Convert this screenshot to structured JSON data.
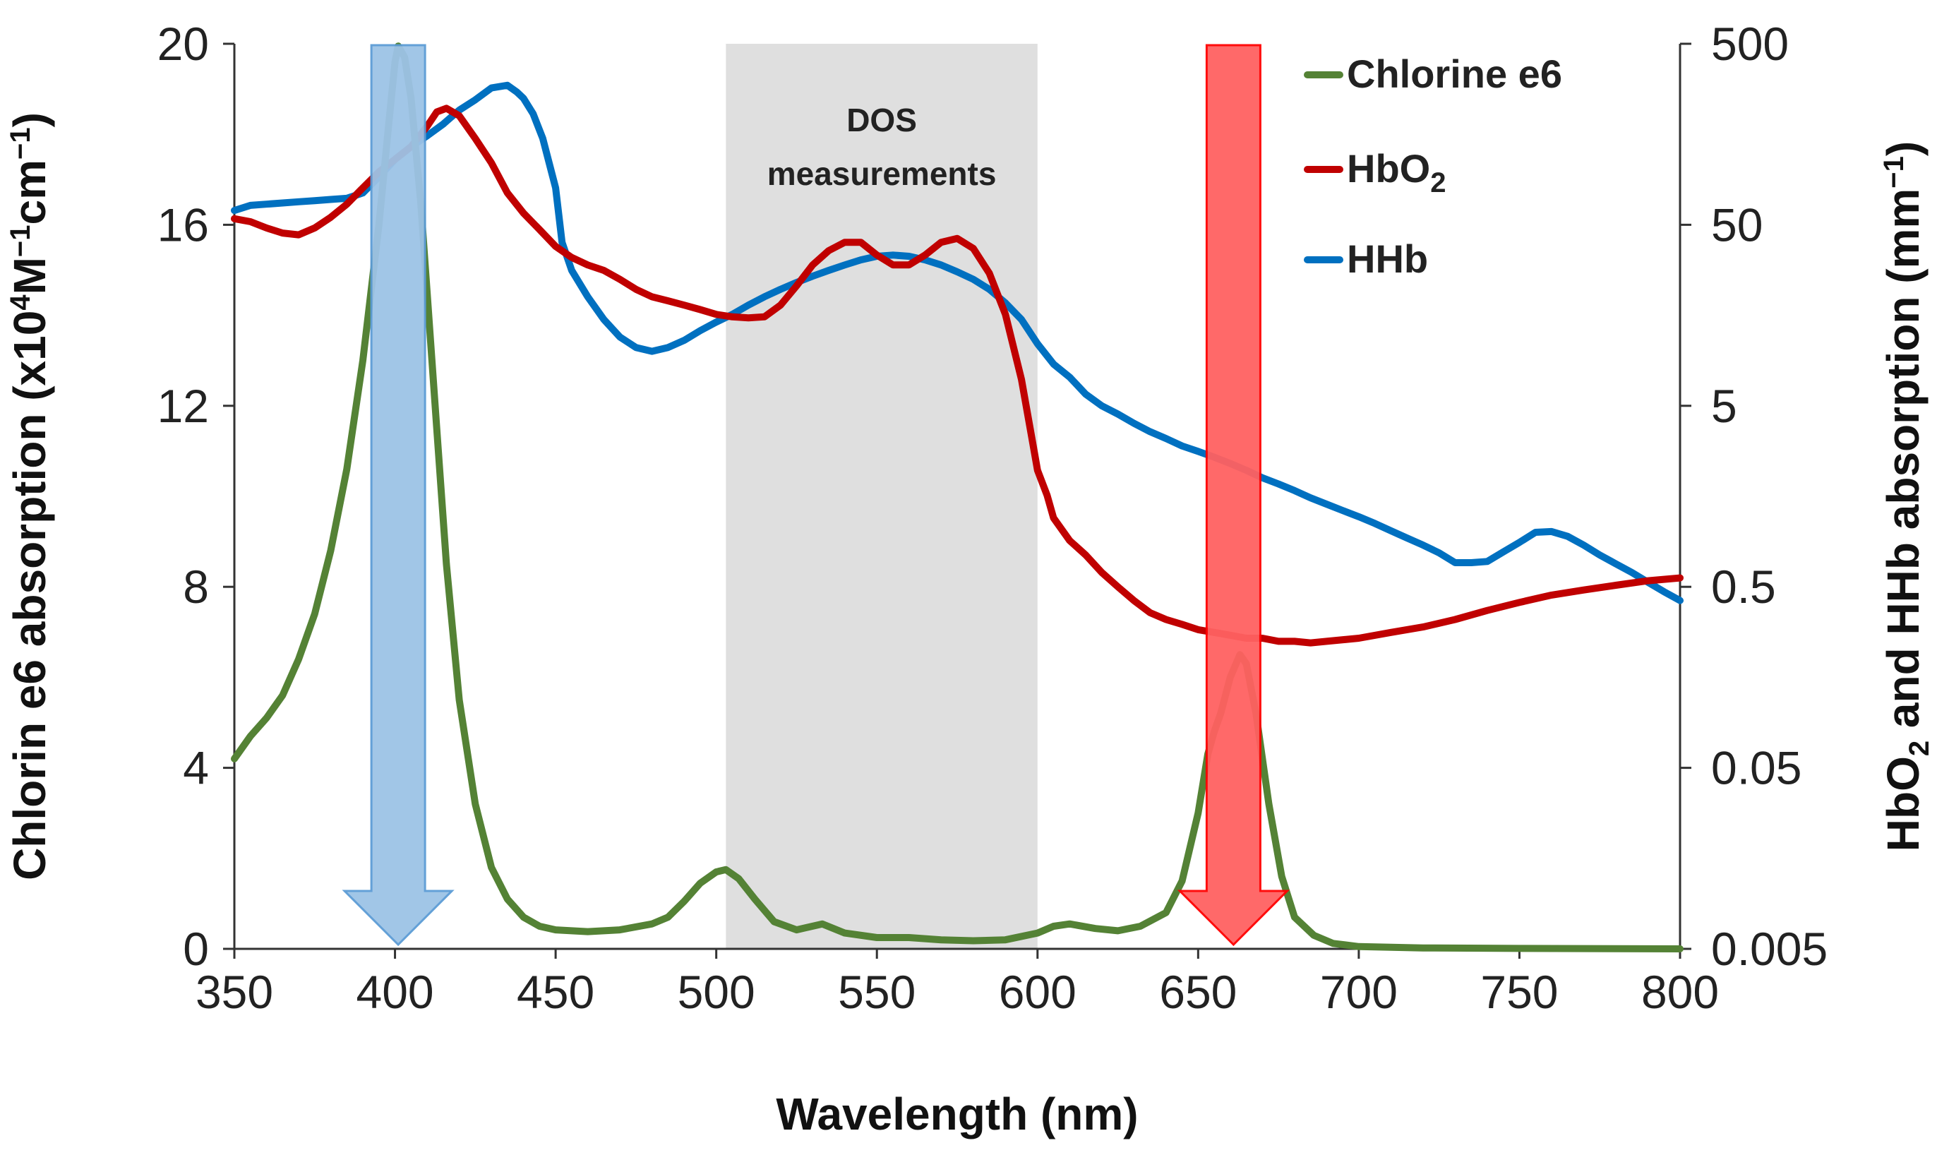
{
  "chart_data": {
    "type": "line",
    "xlabel": "Wavelength (nm)",
    "ylabel_left": {
      "pre": "Chlorin e6 absorption (x10",
      "sup1": "4",
      "mid": "M",
      "sup2": "−1",
      "post": "cm",
      "sup3": "−1",
      "close": ")"
    },
    "ylabel_right": {
      "pre": "HbO",
      "sub": "2",
      "mid": " and HHb absorption (mm",
      "sup": "−1",
      "close": ")"
    },
    "xlim": [
      350,
      800
    ],
    "ylim_left": [
      0,
      20
    ],
    "ylim_right": [
      0.005,
      500
    ],
    "y_right_scale": "log",
    "x_ticks": [
      "350",
      "400",
      "450",
      "500",
      "550",
      "600",
      "650",
      "700",
      "750",
      "800"
    ],
    "y_left_ticks": [
      "0",
      "4",
      "8",
      "12",
      "16",
      "20"
    ],
    "y_right_ticks": [
      "0.005",
      "0.05",
      "0.5",
      "5",
      "50",
      "500"
    ],
    "legend_position": "top-right",
    "series": [
      {
        "name": "Chlorine e6",
        "axis": "left",
        "color": "#548235",
        "points": [
          [
            350,
            4.2
          ],
          [
            355,
            4.7
          ],
          [
            360,
            5.1
          ],
          [
            365,
            5.6
          ],
          [
            370,
            6.4
          ],
          [
            375,
            7.4
          ],
          [
            380,
            8.8
          ],
          [
            385,
            10.6
          ],
          [
            390,
            13.0
          ],
          [
            395,
            16.0
          ],
          [
            398,
            18.2
          ],
          [
            400,
            19.6
          ],
          [
            401,
            19.95
          ],
          [
            403,
            19.7
          ],
          [
            405,
            18.8
          ],
          [
            408,
            16.5
          ],
          [
            410,
            14.5
          ],
          [
            413,
            11.5
          ],
          [
            416,
            8.5
          ],
          [
            420,
            5.5
          ],
          [
            425,
            3.2
          ],
          [
            430,
            1.8
          ],
          [
            435,
            1.1
          ],
          [
            440,
            0.7
          ],
          [
            445,
            0.5
          ],
          [
            450,
            0.42
          ],
          [
            460,
            0.38
          ],
          [
            470,
            0.42
          ],
          [
            480,
            0.55
          ],
          [
            485,
            0.7
          ],
          [
            490,
            1.05
          ],
          [
            495,
            1.45
          ],
          [
            500,
            1.7
          ],
          [
            503,
            1.75
          ],
          [
            507,
            1.55
          ],
          [
            512,
            1.1
          ],
          [
            518,
            0.6
          ],
          [
            525,
            0.42
          ],
          [
            533,
            0.55
          ],
          [
            540,
            0.35
          ],
          [
            550,
            0.25
          ],
          [
            560,
            0.25
          ],
          [
            570,
            0.2
          ],
          [
            580,
            0.18
          ],
          [
            590,
            0.2
          ],
          [
            600,
            0.35
          ],
          [
            605,
            0.5
          ],
          [
            610,
            0.55
          ],
          [
            618,
            0.45
          ],
          [
            625,
            0.4
          ],
          [
            632,
            0.5
          ],
          [
            640,
            0.8
          ],
          [
            645,
            1.5
          ],
          [
            650,
            3.0
          ],
          [
            653,
            4.3
          ],
          [
            655,
            4.8
          ],
          [
            657,
            5.2
          ],
          [
            660,
            6.0
          ],
          [
            663,
            6.5
          ],
          [
            665,
            6.3
          ],
          [
            668,
            5.2
          ],
          [
            672,
            3.2
          ],
          [
            676,
            1.6
          ],
          [
            680,
            0.7
          ],
          [
            686,
            0.3
          ],
          [
            692,
            0.12
          ],
          [
            700,
            0.05
          ],
          [
            720,
            0.02
          ],
          [
            750,
            0.01
          ],
          [
            800,
            0.0
          ]
        ]
      },
      {
        "name": "HbO2",
        "name_base": "HbO",
        "name_sub": "2",
        "axis": "right",
        "color": "#c00000",
        "points": [
          [
            350,
            54
          ],
          [
            355,
            52
          ],
          [
            360,
            48
          ],
          [
            365,
            45
          ],
          [
            370,
            44
          ],
          [
            375,
            48
          ],
          [
            380,
            55
          ],
          [
            385,
            65
          ],
          [
            390,
            80
          ],
          [
            395,
            98
          ],
          [
            400,
            115
          ],
          [
            405,
            135
          ],
          [
            410,
            175
          ],
          [
            413,
            210
          ],
          [
            416,
            220
          ],
          [
            420,
            200
          ],
          [
            425,
            150
          ],
          [
            430,
            110
          ],
          [
            435,
            75
          ],
          [
            440,
            58
          ],
          [
            445,
            47
          ],
          [
            450,
            38
          ],
          [
            455,
            33
          ],
          [
            460,
            30
          ],
          [
            465,
            28
          ],
          [
            470,
            25
          ],
          [
            475,
            22
          ],
          [
            480,
            20
          ],
          [
            485,
            19
          ],
          [
            490,
            18
          ],
          [
            495,
            17
          ],
          [
            500,
            16
          ],
          [
            505,
            15.5
          ],
          [
            510,
            15.3
          ],
          [
            515,
            15.5
          ],
          [
            520,
            18
          ],
          [
            525,
            23
          ],
          [
            530,
            30
          ],
          [
            535,
            36
          ],
          [
            540,
            40
          ],
          [
            545,
            40
          ],
          [
            550,
            34
          ],
          [
            555,
            30
          ],
          [
            560,
            30
          ],
          [
            565,
            34
          ],
          [
            570,
            40
          ],
          [
            575,
            42
          ],
          [
            580,
            37
          ],
          [
            585,
            27
          ],
          [
            590,
            16
          ],
          [
            595,
            7
          ],
          [
            598,
            3.5
          ],
          [
            600,
            2.2
          ],
          [
            603,
            1.6
          ],
          [
            605,
            1.2
          ],
          [
            610,
            0.9
          ],
          [
            615,
            0.75
          ],
          [
            620,
            0.6
          ],
          [
            625,
            0.5
          ],
          [
            630,
            0.42
          ],
          [
            635,
            0.36
          ],
          [
            640,
            0.33
          ],
          [
            645,
            0.31
          ],
          [
            650,
            0.29
          ],
          [
            655,
            0.28
          ],
          [
            660,
            0.27
          ],
          [
            665,
            0.26
          ],
          [
            670,
            0.26
          ],
          [
            675,
            0.25
          ],
          [
            680,
            0.25
          ],
          [
            685,
            0.245
          ],
          [
            690,
            0.25
          ],
          [
            700,
            0.26
          ],
          [
            710,
            0.28
          ],
          [
            720,
            0.3
          ],
          [
            730,
            0.33
          ],
          [
            740,
            0.37
          ],
          [
            750,
            0.41
          ],
          [
            760,
            0.45
          ],
          [
            770,
            0.48
          ],
          [
            780,
            0.51
          ],
          [
            790,
            0.54
          ],
          [
            800,
            0.56
          ]
        ]
      },
      {
        "name": "HHb",
        "axis": "right",
        "color": "#0070c0",
        "points": [
          [
            350,
            60
          ],
          [
            355,
            64
          ],
          [
            360,
            65
          ],
          [
            365,
            66
          ],
          [
            370,
            67
          ],
          [
            375,
            68
          ],
          [
            380,
            69
          ],
          [
            385,
            70
          ],
          [
            390,
            75
          ],
          [
            395,
            92
          ],
          [
            400,
            115
          ],
          [
            405,
            135
          ],
          [
            410,
            155
          ],
          [
            415,
            180
          ],
          [
            420,
            215
          ],
          [
            425,
            245
          ],
          [
            430,
            285
          ],
          [
            435,
            295
          ],
          [
            438,
            270
          ],
          [
            440,
            250
          ],
          [
            443,
            205
          ],
          [
            446,
            150
          ],
          [
            450,
            80
          ],
          [
            452,
            40
          ],
          [
            455,
            28
          ],
          [
            460,
            20
          ],
          [
            465,
            15
          ],
          [
            470,
            12
          ],
          [
            475,
            10.5
          ],
          [
            480,
            10
          ],
          [
            485,
            10.5
          ],
          [
            490,
            11.5
          ],
          [
            495,
            13
          ],
          [
            500,
            14.5
          ],
          [
            505,
            16
          ],
          [
            510,
            18
          ],
          [
            515,
            20
          ],
          [
            520,
            22
          ],
          [
            525,
            24
          ],
          [
            530,
            26
          ],
          [
            535,
            28
          ],
          [
            540,
            30
          ],
          [
            545,
            32
          ],
          [
            550,
            33.5
          ],
          [
            555,
            34
          ],
          [
            560,
            33.5
          ],
          [
            565,
            32
          ],
          [
            570,
            30
          ],
          [
            575,
            27.5
          ],
          [
            580,
            25
          ],
          [
            585,
            22
          ],
          [
            590,
            18.5
          ],
          [
            595,
            15
          ],
          [
            600,
            11
          ],
          [
            605,
            8.5
          ],
          [
            610,
            7.2
          ],
          [
            615,
            5.8
          ],
          [
            620,
            5
          ],
          [
            625,
            4.5
          ],
          [
            630,
            4
          ],
          [
            635,
            3.6
          ],
          [
            640,
            3.3
          ],
          [
            645,
            3
          ],
          [
            650,
            2.8
          ],
          [
            655,
            2.6
          ],
          [
            660,
            2.4
          ],
          [
            665,
            2.2
          ],
          [
            670,
            2
          ],
          [
            675,
            1.85
          ],
          [
            680,
            1.7
          ],
          [
            685,
            1.55
          ],
          [
            690,
            1.43
          ],
          [
            695,
            1.32
          ],
          [
            700,
            1.22
          ],
          [
            705,
            1.12
          ],
          [
            710,
            1.02
          ],
          [
            715,
            0.93
          ],
          [
            720,
            0.85
          ],
          [
            725,
            0.77
          ],
          [
            730,
            0.68
          ],
          [
            735,
            0.68
          ],
          [
            740,
            0.69
          ],
          [
            745,
            0.78
          ],
          [
            750,
            0.88
          ],
          [
            755,
            1.0
          ],
          [
            760,
            1.01
          ],
          [
            765,
            0.95
          ],
          [
            770,
            0.85
          ],
          [
            775,
            0.75
          ],
          [
            780,
            0.67
          ],
          [
            785,
            0.6
          ],
          [
            790,
            0.53
          ],
          [
            795,
            0.47
          ],
          [
            800,
            0.42
          ]
        ]
      }
    ],
    "annotations": {
      "dos_region": {
        "x_range": [
          503,
          600
        ],
        "label_line1": "DOS",
        "label_line2": "measurements",
        "color": "#d9d9d9"
      },
      "blue_arrow": {
        "x": 401,
        "color": "#9dc3e6",
        "edge": "#5b9bd5"
      },
      "red_arrow": {
        "x": 661,
        "color": "#ff6161",
        "edge": "#ff0000"
      }
    }
  }
}
